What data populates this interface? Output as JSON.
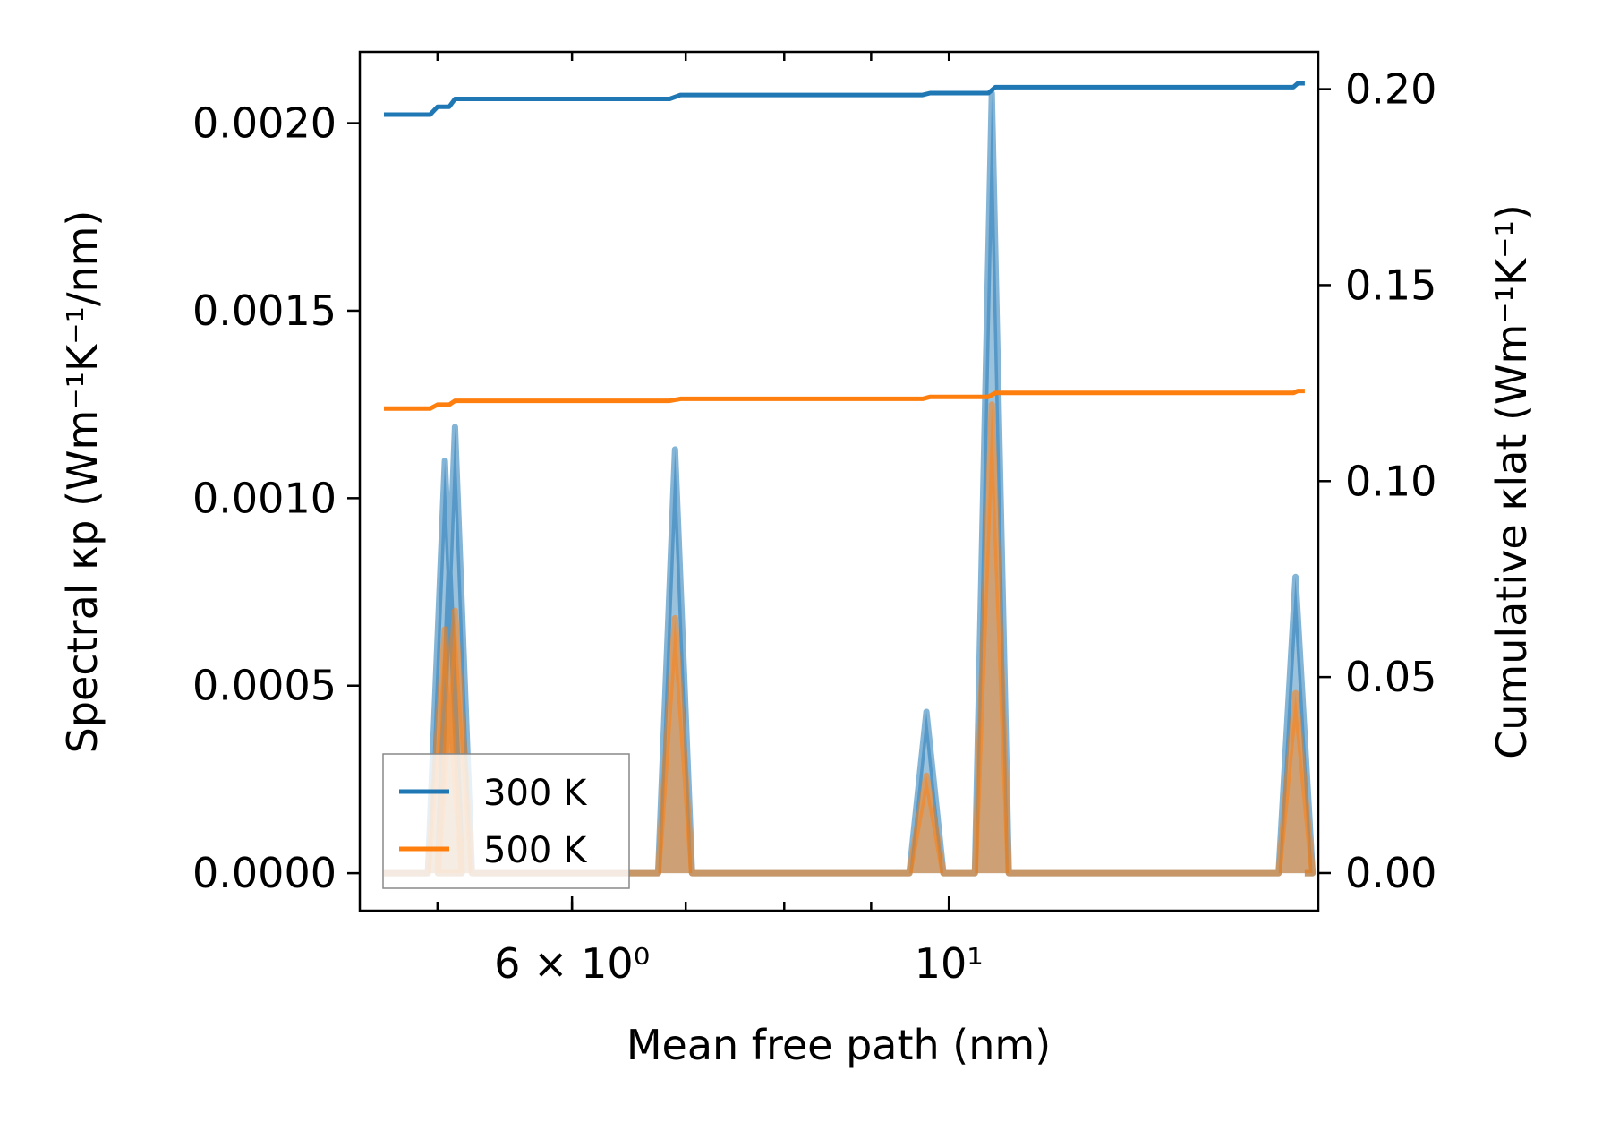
{
  "chart_data": {
    "type": "line",
    "title": "",
    "xlabel": "Mean free path (nm)",
    "ylabel_left": "Spectral κp (Wm⁻¹K⁻¹/nm)",
    "ylabel_right": "Cumulative κlat (Wm⁻¹K⁻¹)",
    "xscale": "log",
    "xlim": [
      4.5,
      16.5
    ],
    "ylim_left": [
      -0.0001,
      0.00219
    ],
    "ylim_right": [
      -0.0096,
      0.2095
    ],
    "x_tick_labels": [
      {
        "value": 6,
        "label": "6 × 10⁰"
      },
      {
        "value": 10,
        "label": "10¹"
      }
    ],
    "y_left_ticks": [
      {
        "value": 0.0,
        "label": "0.0000"
      },
      {
        "value": 0.0005,
        "label": "0.0005"
      },
      {
        "value": 0.001,
        "label": "0.0010"
      },
      {
        "value": 0.0015,
        "label": "0.0015"
      },
      {
        "value": 0.002,
        "label": "0.0020"
      }
    ],
    "y_right_ticks": [
      {
        "value": 0.0,
        "label": "0.00"
      },
      {
        "value": 0.05,
        "label": "0.05"
      },
      {
        "value": 0.1,
        "label": "0.10"
      },
      {
        "value": 0.15,
        "label": "0.15"
      },
      {
        "value": 0.2,
        "label": "0.20"
      }
    ],
    "legend": {
      "position": "lower-left",
      "entries": [
        "300 K",
        "500 K"
      ]
    },
    "grid": false,
    "series": [
      {
        "name": "300 K",
        "color": "#1f77b4",
        "spectral_peaks": [
          {
            "x": 5.05,
            "y": 0.0011
          },
          {
            "x": 5.12,
            "y": 0.00119
          },
          {
            "x": 6.9,
            "y": 0.00113
          },
          {
            "x": 9.7,
            "y": 0.00043
          },
          {
            "x": 10.6,
            "y": 0.00208
          },
          {
            "x": 16.0,
            "y": 0.00079
          }
        ],
        "cumulative": [
          {
            "x": 4.65,
            "y": 0.1935
          },
          {
            "x": 4.95,
            "y": 0.1935
          },
          {
            "x": 5.0,
            "y": 0.1955
          },
          {
            "x": 5.08,
            "y": 0.1955
          },
          {
            "x": 5.12,
            "y": 0.1975
          },
          {
            "x": 6.85,
            "y": 0.1975
          },
          {
            "x": 6.95,
            "y": 0.1985
          },
          {
            "x": 9.65,
            "y": 0.1985
          },
          {
            "x": 9.75,
            "y": 0.199
          },
          {
            "x": 10.55,
            "y": 0.199
          },
          {
            "x": 10.65,
            "y": 0.2005
          },
          {
            "x": 15.95,
            "y": 0.2005
          },
          {
            "x": 16.05,
            "y": 0.2015
          },
          {
            "x": 16.2,
            "y": 0.2015
          }
        ]
      },
      {
        "name": "500 K",
        "color": "#ff7f0e",
        "spectral_peaks": [
          {
            "x": 5.05,
            "y": 0.00065
          },
          {
            "x": 5.12,
            "y": 0.0007
          },
          {
            "x": 6.9,
            "y": 0.00068
          },
          {
            "x": 9.7,
            "y": 0.00026
          },
          {
            "x": 10.6,
            "y": 0.00125
          },
          {
            "x": 16.0,
            "y": 0.00048
          }
        ],
        "cumulative": [
          {
            "x": 4.65,
            "y": 0.1185
          },
          {
            "x": 4.95,
            "y": 0.1185
          },
          {
            "x": 5.0,
            "y": 0.1195
          },
          {
            "x": 5.08,
            "y": 0.1195
          },
          {
            "x": 5.12,
            "y": 0.1205
          },
          {
            "x": 6.85,
            "y": 0.1205
          },
          {
            "x": 6.95,
            "y": 0.121
          },
          {
            "x": 9.65,
            "y": 0.121
          },
          {
            "x": 9.75,
            "y": 0.1215
          },
          {
            "x": 10.55,
            "y": 0.1215
          },
          {
            "x": 10.65,
            "y": 0.1225
          },
          {
            "x": 15.95,
            "y": 0.1225
          },
          {
            "x": 16.05,
            "y": 0.123
          },
          {
            "x": 16.2,
            "y": 0.123
          }
        ]
      }
    ]
  }
}
